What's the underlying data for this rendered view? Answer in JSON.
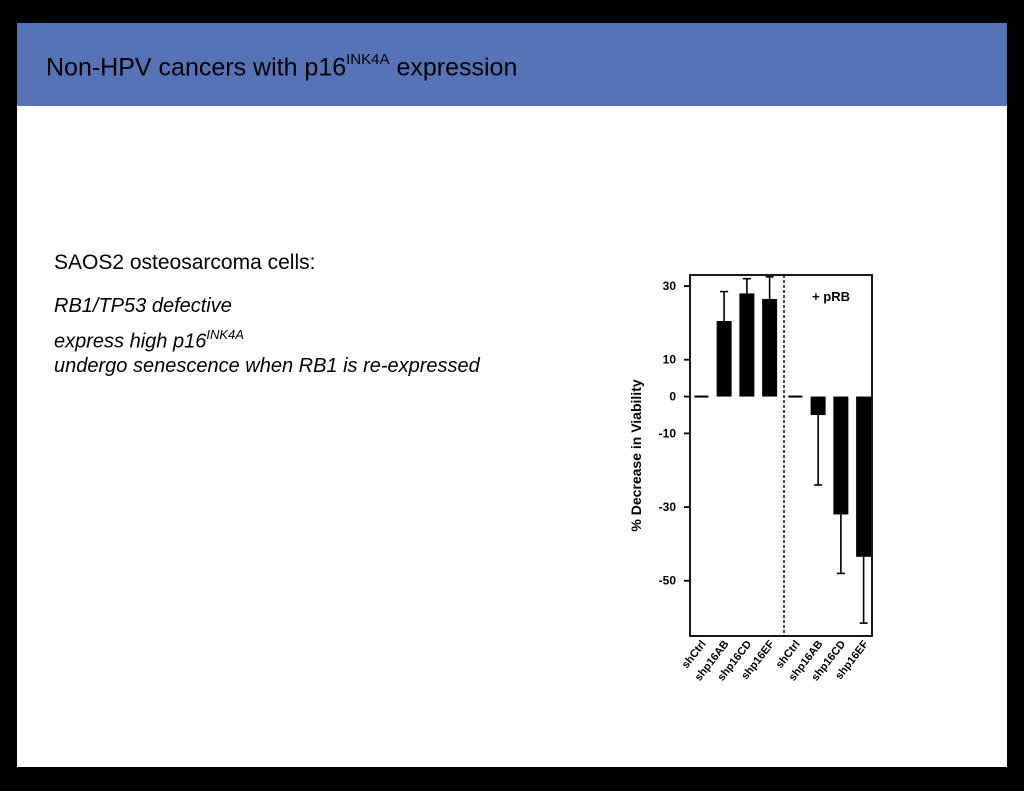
{
  "header": {
    "title_main": "Non-HPV cancers with p16",
    "title_sup": "INK4A",
    "title_tail": " expression"
  },
  "content": {
    "heading": "SAOS2 osteosarcoma cells:",
    "bullets": [
      {
        "text": "RB1/TP53 defective",
        "sup": ""
      },
      {
        "text": "express high p16",
        "sup": "INK4A"
      },
      {
        "text": "undergo senescence when RB1 is re-expressed",
        "sup": ""
      }
    ]
  },
  "chart_data": {
    "type": "bar",
    "ylabel": "% Decrease in Viability",
    "ylim": [
      -65,
      33
    ],
    "yticks": [
      30,
      10,
      0,
      -10,
      -30,
      -50
    ],
    "categories": [
      "shCtrl",
      "shp16AB",
      "shp16CD",
      "shp16EF",
      "shCtrl",
      "shp16AB",
      "shp16CD",
      "shp16EF"
    ],
    "values": [
      0,
      20.5,
      28,
      26.5,
      0,
      -5,
      -32,
      -43.5
    ],
    "errors": [
      0,
      8,
      4,
      6,
      0,
      19,
      16,
      18
    ],
    "error_direction": "away",
    "group_divider_after_index": 3,
    "group_divider_style": "dashed",
    "annotation": "+ pRB",
    "bar_color": "#000000"
  }
}
